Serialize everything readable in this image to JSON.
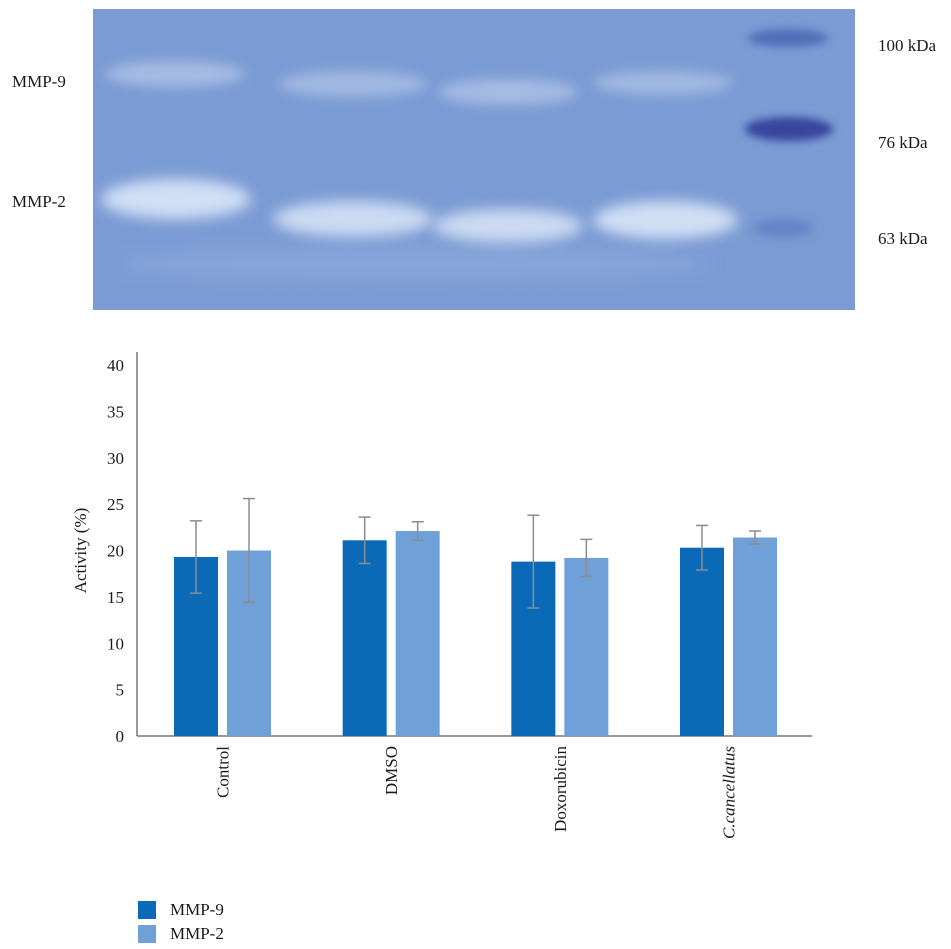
{
  "gel": {
    "left_labels": [
      "MMP-9",
      "MMP-2"
    ],
    "right_labels": [
      "100 kDa",
      "76 kDa",
      "63 kDa"
    ]
  },
  "chart_data": {
    "type": "bar",
    "categories": [
      "Control",
      "DMSO",
      "Doxorubicin",
      "C.cancellatus"
    ],
    "category_italic": [
      false,
      false,
      false,
      true
    ],
    "series": [
      {
        "name": "MMP-9",
        "color": "#0a6ab8",
        "values": [
          19.3,
          21.1,
          18.8,
          20.3
        ],
        "errors": [
          3.9,
          2.5,
          5.0,
          2.4
        ]
      },
      {
        "name": "MMP-2",
        "color": "#6fa0d8",
        "values": [
          20.0,
          22.1,
          19.2,
          21.4
        ],
        "errors": [
          5.6,
          1.0,
          2.0,
          0.7
        ]
      }
    ],
    "ylabel": "Activity (%)",
    "ylim": [
      0,
      40
    ],
    "yticks": [
      0,
      5,
      10,
      15,
      20,
      25,
      30,
      35,
      40
    ],
    "grid": false,
    "legend_position": "bottom-left"
  }
}
